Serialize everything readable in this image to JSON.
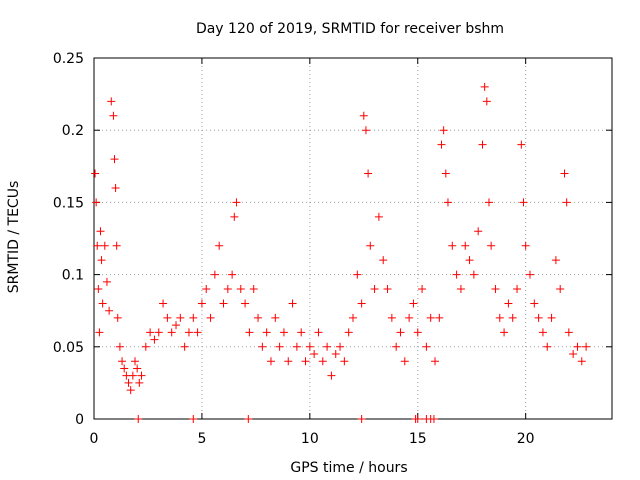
{
  "chart_data": {
    "type": "scatter",
    "title": "Day 120 of 2019, SRMTID for receiver bshm",
    "xlabel": "GPS time / hours",
    "ylabel": "SRMTID / TECUs",
    "xlim": [
      0,
      24
    ],
    "ylim": [
      0,
      0.25
    ],
    "xticks": [
      0,
      5,
      10,
      15,
      20
    ],
    "yticks": [
      0,
      0.05,
      0.1,
      0.15,
      0.2,
      0.25
    ],
    "xtick_labels": [
      "0",
      "5",
      "10",
      "15",
      "20"
    ],
    "ytick_labels": [
      "0",
      "0.05",
      "0.1",
      "0.15",
      "0.2",
      "0.25"
    ],
    "grid": true,
    "legend": "none",
    "marker": "+",
    "series": [
      {
        "name": "SRMTID",
        "color": "#ff0000",
        "points": [
          [
            0.05,
            0.17
          ],
          [
            0.1,
            0.15
          ],
          [
            0.15,
            0.12
          ],
          [
            0.2,
            0.09
          ],
          [
            0.25,
            0.06
          ],
          [
            0.3,
            0.13
          ],
          [
            0.35,
            0.11
          ],
          [
            0.4,
            0.08
          ],
          [
            0.5,
            0.12
          ],
          [
            0.6,
            0.095
          ],
          [
            0.7,
            0.075
          ],
          [
            0.8,
            0.22
          ],
          [
            0.9,
            0.21
          ],
          [
            0.95,
            0.18
          ],
          [
            1.0,
            0.16
          ],
          [
            1.05,
            0.12
          ],
          [
            1.1,
            0.07
          ],
          [
            1.2,
            0.05
          ],
          [
            1.3,
            0.04
          ],
          [
            1.4,
            0.035
          ],
          [
            1.5,
            0.03
          ],
          [
            1.6,
            0.025
          ],
          [
            1.7,
            0.02
          ],
          [
            1.8,
            0.03
          ],
          [
            1.9,
            0.04
          ],
          [
            2.0,
            0.035
          ],
          [
            2.1,
            0.025
          ],
          [
            2.2,
            0.03
          ],
          [
            2.4,
            0.05
          ],
          [
            2.6,
            0.06
          ],
          [
            2.8,
            0.055
          ],
          [
            3.0,
            0.06
          ],
          [
            3.2,
            0.08
          ],
          [
            3.4,
            0.07
          ],
          [
            3.6,
            0.06
          ],
          [
            3.8,
            0.065
          ],
          [
            4.0,
            0.07
          ],
          [
            4.2,
            0.05
          ],
          [
            4.4,
            0.06
          ],
          [
            4.6,
            0.07
          ],
          [
            4.8,
            0.06
          ],
          [
            5.0,
            0.08
          ],
          [
            5.2,
            0.09
          ],
          [
            5.4,
            0.07
          ],
          [
            5.6,
            0.1
          ],
          [
            5.8,
            0.12
          ],
          [
            6.0,
            0.08
          ],
          [
            6.2,
            0.09
          ],
          [
            6.4,
            0.1
          ],
          [
            6.5,
            0.14
          ],
          [
            6.6,
            0.15
          ],
          [
            6.8,
            0.09
          ],
          [
            7.0,
            0.08
          ],
          [
            7.2,
            0.06
          ],
          [
            7.4,
            0.09
          ],
          [
            7.6,
            0.07
          ],
          [
            7.8,
            0.05
          ],
          [
            8.0,
            0.06
          ],
          [
            8.2,
            0.04
          ],
          [
            8.4,
            0.07
          ],
          [
            8.6,
            0.05
          ],
          [
            8.8,
            0.06
          ],
          [
            9.0,
            0.04
          ],
          [
            9.2,
            0.08
          ],
          [
            9.4,
            0.05
          ],
          [
            9.6,
            0.06
          ],
          [
            9.8,
            0.04
          ],
          [
            10.0,
            0.05
          ],
          [
            10.2,
            0.045
          ],
          [
            10.4,
            0.06
          ],
          [
            10.6,
            0.04
          ],
          [
            10.8,
            0.05
          ],
          [
            11.0,
            0.03
          ],
          [
            11.2,
            0.045
          ],
          [
            11.4,
            0.05
          ],
          [
            11.6,
            0.04
          ],
          [
            11.8,
            0.06
          ],
          [
            12.0,
            0.07
          ],
          [
            12.2,
            0.1
          ],
          [
            12.4,
            0.08
          ],
          [
            12.5,
            0.21
          ],
          [
            12.6,
            0.2
          ],
          [
            12.7,
            0.17
          ],
          [
            12.8,
            0.12
          ],
          [
            13.0,
            0.09
          ],
          [
            13.2,
            0.14
          ],
          [
            13.4,
            0.11
          ],
          [
            13.6,
            0.09
          ],
          [
            13.8,
            0.07
          ],
          [
            14.0,
            0.05
          ],
          [
            14.2,
            0.06
          ],
          [
            14.4,
            0.04
          ],
          [
            14.6,
            0.07
          ],
          [
            14.8,
            0.08
          ],
          [
            15.0,
            0.06
          ],
          [
            15.2,
            0.09
          ],
          [
            15.4,
            0.05
          ],
          [
            15.6,
            0.07
          ],
          [
            15.8,
            0.04
          ],
          [
            16.0,
            0.07
          ],
          [
            16.1,
            0.19
          ],
          [
            16.2,
            0.2
          ],
          [
            16.3,
            0.17
          ],
          [
            16.4,
            0.15
          ],
          [
            16.6,
            0.12
          ],
          [
            16.8,
            0.1
          ],
          [
            17.0,
            0.09
          ],
          [
            17.2,
            0.12
          ],
          [
            17.4,
            0.11
          ],
          [
            17.6,
            0.1
          ],
          [
            17.8,
            0.13
          ],
          [
            18.0,
            0.19
          ],
          [
            18.1,
            0.23
          ],
          [
            18.2,
            0.22
          ],
          [
            18.3,
            0.15
          ],
          [
            18.4,
            0.12
          ],
          [
            18.6,
            0.09
          ],
          [
            18.8,
            0.07
          ],
          [
            19.0,
            0.06
          ],
          [
            19.2,
            0.08
          ],
          [
            19.4,
            0.07
          ],
          [
            19.6,
            0.09
          ],
          [
            19.8,
            0.19
          ],
          [
            19.9,
            0.15
          ],
          [
            20.0,
            0.12
          ],
          [
            20.2,
            0.1
          ],
          [
            20.4,
            0.08
          ],
          [
            20.6,
            0.07
          ],
          [
            20.8,
            0.06
          ],
          [
            21.0,
            0.05
          ],
          [
            21.2,
            0.07
          ],
          [
            21.4,
            0.11
          ],
          [
            21.6,
            0.09
          ],
          [
            21.8,
            0.17
          ],
          [
            21.9,
            0.15
          ],
          [
            22.0,
            0.06
          ],
          [
            22.2,
            0.045
          ],
          [
            22.4,
            0.05
          ],
          [
            22.6,
            0.04
          ],
          [
            22.8,
            0.05
          ],
          [
            2.05,
            0.0
          ],
          [
            4.6,
            0.0
          ],
          [
            7.15,
            0.0
          ],
          [
            12.4,
            0.0
          ],
          [
            14.9,
            0.0
          ],
          [
            15.0,
            0.0
          ],
          [
            15.4,
            0.0
          ],
          [
            15.6,
            0.0
          ],
          [
            15.75,
            0.0
          ]
        ]
      }
    ]
  }
}
